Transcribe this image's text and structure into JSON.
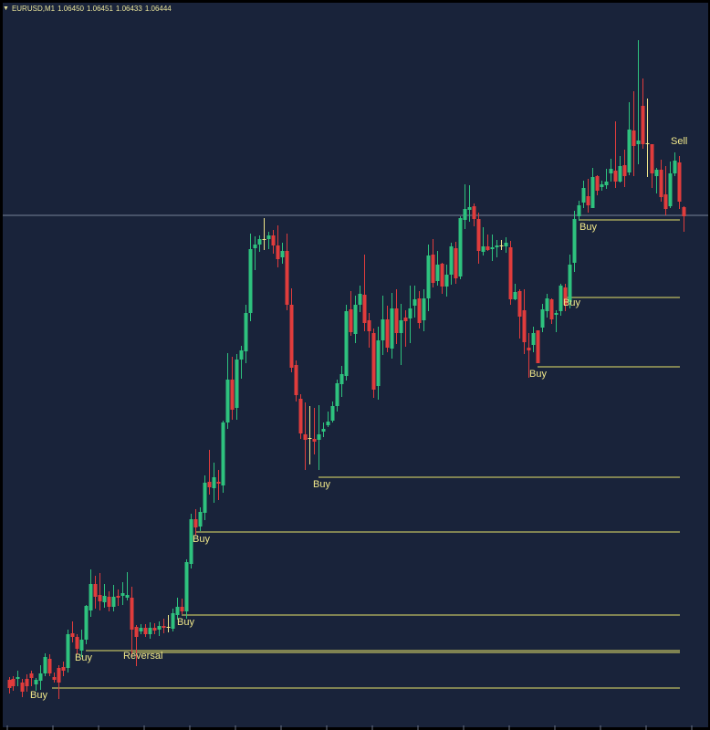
{
  "header": {
    "symbol": "EURUSD,M1",
    "ohlc": [
      "1.06450",
      "1.06451",
      "1.06433",
      "1.06444"
    ]
  },
  "colors": {
    "background": "#19233a",
    "bull": "#2ec27e",
    "bear": "#e03c3c",
    "doji": "#f0e78a",
    "level_line": "#e7e36a",
    "label_text": "#f0e78a",
    "price_line": "#8f9bb0"
  },
  "chart_data": {
    "type": "candlestick",
    "y_range": [
      0,
      800
    ],
    "y_axis_note": "unlabeled price axis; values expressed as relative levels",
    "candles": [
      [
        10,
        745,
        742,
        760,
        754
      ],
      [
        14,
        744,
        741,
        757,
        752
      ],
      [
        19,
        744,
        735,
        752,
        742
      ],
      [
        24,
        748,
        744,
        764,
        758
      ],
      [
        29,
        744,
        739,
        758,
        752
      ],
      [
        34,
        738,
        735,
        752,
        743
      ],
      [
        39,
        750,
        743,
        757,
        745
      ],
      [
        44,
        746,
        729,
        756,
        738
      ],
      [
        49,
        738,
        716,
        741,
        720
      ],
      [
        54,
        722,
        717,
        741,
        738
      ],
      [
        59,
        742,
        737,
        748,
        745
      ],
      [
        64,
        732,
        729,
        766,
        748
      ],
      [
        69,
        731,
        725,
        741,
        735
      ],
      [
        74,
        732,
        690,
        737,
        695
      ],
      [
        79,
        694,
        681,
        704,
        698
      ],
      [
        84,
        698,
        695,
        717,
        711
      ],
      [
        89,
        713,
        690,
        720,
        701
      ],
      [
        94,
        701,
        663,
        706,
        664
      ],
      [
        99,
        669,
        624,
        676,
        640
      ],
      [
        104,
        640,
        631,
        667,
        654
      ],
      [
        109,
        652,
        628,
        669,
        659
      ],
      [
        114,
        660,
        640,
        666,
        653
      ],
      [
        119,
        654,
        648,
        670,
        665
      ],
      [
        124,
        665,
        641,
        670,
        654
      ],
      [
        129,
        653,
        646,
        664,
        655
      ],
      [
        134,
        653,
        638,
        663,
        650
      ],
      [
        139,
        655,
        627,
        658,
        652
      ],
      [
        144,
        655,
        643,
        720,
        690
      ],
      [
        149,
        687,
        685,
        730,
        698
      ],
      [
        154,
        692,
        684,
        695,
        688
      ],
      [
        159,
        688,
        684,
        698,
        695
      ],
      [
        164,
        695,
        682,
        700,
        688
      ],
      [
        169,
        688,
        683,
        695,
        691
      ],
      [
        174,
        690,
        681,
        697,
        686
      ],
      [
        179,
        686,
        678,
        694,
        688
      ],
      [
        184,
        688,
        674,
        693,
        687
      ],
      [
        189,
        689,
        667,
        692,
        672
      ],
      [
        194,
        674,
        655,
        679,
        665
      ],
      [
        199,
        665,
        656,
        673,
        670
      ],
      [
        204,
        670,
        613,
        678,
        616
      ],
      [
        209,
        618,
        563,
        623,
        569
      ],
      [
        214,
        569,
        558,
        587,
        578
      ],
      [
        219,
        577,
        556,
        582,
        561
      ],
      [
        224,
        562,
        521,
        570,
        529
      ],
      [
        229,
        528,
        493,
        542,
        534
      ],
      [
        234,
        535,
        507,
        551,
        523
      ],
      [
        239,
        528,
        515,
        548,
        530
      ],
      [
        244,
        532,
        461,
        540,
        463
      ],
      [
        249,
        463,
        387,
        470,
        416
      ],
      [
        254,
        416,
        391,
        460,
        449
      ],
      [
        259,
        447,
        388,
        460,
        394
      ],
      [
        264,
        394,
        379,
        415,
        384
      ],
      [
        269,
        385,
        334,
        398,
        343
      ],
      [
        274,
        343,
        256,
        352,
        273
      ],
      [
        279,
        272,
        259,
        296,
        268
      ],
      [
        284,
        268,
        258,
        276,
        262
      ],
      [
        289,
        263,
        239,
        274,
        262
      ],
      [
        294,
        262,
        254,
        273,
        258
      ],
      [
        299,
        258,
        252,
        278,
        269
      ],
      [
        304,
        269,
        247,
        293,
        284
      ],
      [
        309,
        282,
        266,
        289,
        275
      ],
      [
        314,
        275,
        256,
        340,
        334
      ],
      [
        319,
        334,
        316,
        408,
        403
      ],
      [
        324,
        400,
        395,
        440,
        433
      ],
      [
        329,
        437,
        432,
        481,
        475
      ],
      [
        334,
        476,
        441,
        515,
        482
      ],
      [
        339,
        480,
        445,
        509,
        480
      ],
      [
        344,
        481,
        447,
        498,
        484
      ],
      [
        349,
        482,
        444,
        515,
        476
      ],
      [
        354,
        473,
        463,
        479,
        470
      ],
      [
        359,
        466,
        451,
        468,
        462
      ],
      [
        364,
        461,
        440,
        463,
        445
      ],
      [
        369,
        445,
        416,
        451,
        420
      ],
      [
        374,
        421,
        401,
        435,
        410
      ],
      [
        379,
        412,
        334,
        417,
        341
      ],
      [
        384,
        339,
        319,
        368,
        364
      ],
      [
        389,
        366,
        324,
        376,
        334
      ],
      [
        394,
        334,
        313,
        342,
        322
      ],
      [
        399,
        323,
        279,
        363,
        354
      ],
      [
        404,
        351,
        343,
        381,
        363
      ],
      [
        409,
        365,
        360,
        436,
        427
      ],
      [
        414,
        423,
        358,
        438,
        373
      ],
      [
        419,
        373,
        324,
        389,
        350
      ],
      [
        424,
        350,
        335,
        386,
        381
      ],
      [
        429,
        382,
        321,
        393,
        338
      ],
      [
        434,
        338,
        317,
        377,
        365
      ],
      [
        439,
        365,
        333,
        400,
        351
      ],
      [
        444,
        348,
        340,
        380,
        352
      ],
      [
        449,
        349,
        313,
        376,
        338
      ],
      [
        454,
        335,
        313,
        348,
        328
      ],
      [
        459,
        327,
        319,
        360,
        354
      ],
      [
        464,
        351,
        317,
        363,
        327
      ],
      [
        469,
        327,
        268,
        341,
        280
      ],
      [
        474,
        279,
        262,
        315,
        310
      ],
      [
        479,
        308,
        275,
        313,
        290
      ],
      [
        484,
        289,
        288,
        322,
        314
      ],
      [
        489,
        314,
        290,
        325,
        301
      ],
      [
        494,
        301,
        266,
        312,
        270
      ],
      [
        499,
        272,
        265,
        311,
        305
      ],
      [
        504,
        303,
        237,
        306,
        239
      ],
      [
        509,
        241,
        202,
        251,
        229
      ],
      [
        514,
        230,
        203,
        243,
        227
      ],
      [
        519,
        226,
        223,
        248,
        240
      ],
      [
        524,
        240,
        233,
        289,
        275
      ],
      [
        529,
        276,
        249,
        280,
        270
      ],
      [
        534,
        270,
        257,
        275,
        274
      ],
      [
        539,
        273,
        257,
        286,
        271
      ],
      [
        544,
        271,
        263,
        282,
        269
      ],
      [
        549,
        269,
        263,
        274,
        270
      ],
      [
        554,
        270,
        260,
        277,
        266
      ],
      [
        559,
        271,
        264,
        334,
        328
      ],
      [
        564,
        328,
        311,
        329,
        320
      ],
      [
        569,
        319,
        317,
        371,
        347
      ],
      [
        574,
        340,
        317,
        388,
        375
      ],
      [
        579,
        381,
        365,
        414,
        384
      ],
      [
        584,
        378,
        358,
        386,
        365
      ],
      [
        589,
        362,
        362,
        396,
        398
      ],
      [
        594,
        359,
        333,
        364,
        339
      ],
      [
        599,
        341,
        322,
        348,
        327
      ],
      [
        604,
        328,
        327,
        355,
        350
      ],
      [
        609,
        345,
        340,
        364,
        343
      ],
      [
        614,
        341,
        311,
        346,
        313
      ],
      [
        619,
        315,
        311,
        341,
        334
      ],
      [
        624,
        331,
        279,
        338,
        290
      ],
      [
        629,
        288,
        231,
        298,
        240
      ],
      [
        634,
        237,
        220,
        242,
        225
      ],
      [
        639,
        222,
        198,
        228,
        206
      ],
      [
        644,
        215,
        196,
        233,
        225
      ],
      [
        649,
        228,
        184,
        225,
        194
      ],
      [
        654,
        193,
        192,
        214,
        209
      ],
      [
        659,
        205,
        198,
        209,
        202
      ],
      [
        664,
        203,
        185,
        207,
        199
      ],
      [
        669,
        190,
        174,
        199,
        185
      ],
      [
        674,
        187,
        133,
        206,
        199
      ],
      [
        679,
        199,
        171,
        200,
        182
      ],
      [
        684,
        181,
        164,
        205,
        193
      ],
      [
        689,
        189,
        112,
        192,
        142
      ],
      [
        694,
        143,
        100,
        193,
        160
      ],
      [
        699,
        158,
        44,
        180,
        154
      ],
      [
        704,
        116,
        86,
        163,
        158
      ],
      [
        709,
        158,
        108,
        194,
        157
      ],
      [
        714,
        158,
        158,
        206,
        190
      ],
      [
        719,
        193,
        184,
        212,
        186
      ],
      [
        724,
        186,
        175,
        221,
        216
      ],
      [
        729,
        213,
        182,
        236,
        229
      ],
      [
        734,
        226,
        177,
        228,
        190
      ],
      [
        739,
        190,
        167,
        193,
        176
      ],
      [
        744,
        178,
        171,
        229,
        221
      ],
      [
        749,
        227,
        226,
        254,
        237
      ]
    ],
    "levels": [
      {
        "x1": 57,
        "x2": 745,
        "y": 754
      },
      {
        "x1": 94,
        "x2": 745,
        "y": 713
      },
      {
        "x1": 144,
        "x2": 745,
        "y": 715
      },
      {
        "x1": 199,
        "x2": 745,
        "y": 674
      },
      {
        "x1": 214,
        "x2": 745,
        "y": 583
      },
      {
        "x1": 349,
        "x2": 745,
        "y": 523
      },
      {
        "x1": 589,
        "x2": 745,
        "y": 402
      },
      {
        "x1": 619,
        "x2": 745,
        "y": 326
      },
      {
        "x1": 634,
        "x2": 745,
        "y": 241
      }
    ],
    "current_price_y": 236,
    "signals": [
      {
        "text": "Buy",
        "x": 33,
        "y": 765
      },
      {
        "text": "Buy",
        "x": 82,
        "y": 724
      },
      {
        "text": "Reversal",
        "x": 135,
        "y": 722
      },
      {
        "text": "Buy",
        "x": 194,
        "y": 685
      },
      {
        "text": "Buy",
        "x": 211,
        "y": 594
      },
      {
        "text": "Buy",
        "x": 343,
        "y": 534
      },
      {
        "text": "Buy",
        "x": 580,
        "y": 413
      },
      {
        "text": "Buy",
        "x": 617,
        "y": 335
      },
      {
        "text": "Buy",
        "x": 635,
        "y": 252
      },
      {
        "text": "Sell",
        "x": 735,
        "y": 158
      }
    ]
  }
}
